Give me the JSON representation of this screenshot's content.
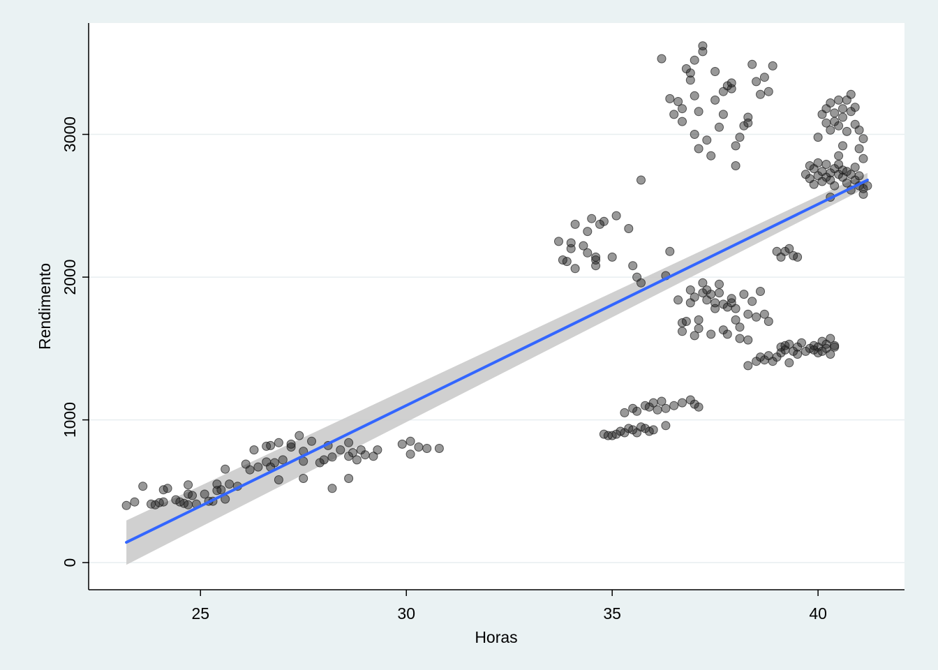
{
  "chart_data": {
    "type": "scatter",
    "title": "",
    "xlabel": "Horas",
    "ylabel": "Rendimento",
    "xlim": [
      22.3,
      42.1
    ],
    "ylim": [
      -190,
      3780
    ],
    "x_ticks": [
      25,
      30,
      35,
      40
    ],
    "y_ticks": [
      0,
      1000,
      2000,
      3000
    ],
    "grid": "horizontal",
    "legend": "none",
    "colors": {
      "page_background": "#eaf2f3",
      "plot_background": "#ffffff",
      "gridline": "#e8eef0",
      "points": "#1a1a1a",
      "fit_line": "#3366ff",
      "confidence_band": "#c8c8c8",
      "axis": "#000000"
    },
    "fit": {
      "method": "linear",
      "start": [
        23.2,
        142
      ],
      "end": [
        41.2,
        2680
      ],
      "ci_start": [
        -15,
        295
      ],
      "ci_end": [
        2630,
        2730
      ]
    },
    "points": [
      [
        23.2,
        400
      ],
      [
        23.4,
        425
      ],
      [
        23.6,
        535
      ],
      [
        23.8,
        410
      ],
      [
        23.9,
        405
      ],
      [
        24.0,
        420
      ],
      [
        24.1,
        510
      ],
      [
        24.1,
        425
      ],
      [
        24.2,
        520
      ],
      [
        24.4,
        440
      ],
      [
        24.5,
        425
      ],
      [
        24.6,
        415
      ],
      [
        24.7,
        480
      ],
      [
        24.7,
        405
      ],
      [
        24.7,
        545
      ],
      [
        24.8,
        470
      ],
      [
        24.9,
        410
      ],
      [
        25.1,
        480
      ],
      [
        25.2,
        430
      ],
      [
        25.3,
        430
      ],
      [
        25.4,
        505
      ],
      [
        25.4,
        550
      ],
      [
        25.5,
        510
      ],
      [
        25.6,
        445
      ],
      [
        25.6,
        655
      ],
      [
        25.7,
        550
      ],
      [
        25.9,
        535
      ],
      [
        26.1,
        690
      ],
      [
        26.2,
        650
      ],
      [
        26.3,
        790
      ],
      [
        26.4,
        670
      ],
      [
        26.6,
        815
      ],
      [
        26.6,
        705
      ],
      [
        26.7,
        820
      ],
      [
        26.7,
        670
      ],
      [
        26.8,
        700
      ],
      [
        26.9,
        580
      ],
      [
        26.9,
        840
      ],
      [
        27.0,
        720
      ],
      [
        27.2,
        810
      ],
      [
        27.2,
        830
      ],
      [
        27.4,
        890
      ],
      [
        27.5,
        710
      ],
      [
        27.5,
        590
      ],
      [
        27.5,
        780
      ],
      [
        27.7,
        850
      ],
      [
        27.9,
        700
      ],
      [
        28.0,
        720
      ],
      [
        28.1,
        820
      ],
      [
        28.2,
        520
      ],
      [
        28.2,
        740
      ],
      [
        28.4,
        790
      ],
      [
        28.6,
        590
      ],
      [
        28.6,
        745
      ],
      [
        28.6,
        840
      ],
      [
        28.7,
        770
      ],
      [
        28.8,
        720
      ],
      [
        28.9,
        790
      ],
      [
        29.0,
        755
      ],
      [
        29.2,
        745
      ],
      [
        29.3,
        790
      ],
      [
        29.9,
        830
      ],
      [
        30.1,
        760
      ],
      [
        30.1,
        850
      ],
      [
        30.3,
        810
      ],
      [
        30.5,
        800
      ],
      [
        30.8,
        800
      ],
      [
        33.7,
        2250
      ],
      [
        33.8,
        2120
      ],
      [
        33.9,
        2110
      ],
      [
        34.0,
        2200
      ],
      [
        34.0,
        2240
      ],
      [
        34.1,
        2370
      ],
      [
        34.1,
        2060
      ],
      [
        34.3,
        2220
      ],
      [
        34.4,
        2170
      ],
      [
        34.4,
        2320
      ],
      [
        34.5,
        2410
      ],
      [
        34.6,
        2120
      ],
      [
        34.6,
        2140
      ],
      [
        34.6,
        2080
      ],
      [
        34.7,
        2370
      ],
      [
        34.8,
        2390
      ],
      [
        35.0,
        2140
      ],
      [
        35.1,
        2430
      ],
      [
        35.4,
        2340
      ],
      [
        35.5,
        2080
      ],
      [
        35.6,
        2000
      ],
      [
        35.7,
        1960
      ],
      [
        35.7,
        2680
      ],
      [
        36.2,
        3530
      ],
      [
        36.3,
        2010
      ],
      [
        36.4,
        2180
      ],
      [
        36.4,
        3250
      ],
      [
        36.5,
        3140
      ],
      [
        36.6,
        3230
      ],
      [
        36.7,
        3180
      ],
      [
        36.7,
        3090
      ],
      [
        36.8,
        3460
      ],
      [
        36.9,
        3430
      ],
      [
        36.9,
        3380
      ],
      [
        37.0,
        3270
      ],
      [
        37.0,
        3000
      ],
      [
        37.0,
        3520
      ],
      [
        37.1,
        3160
      ],
      [
        37.1,
        2900
      ],
      [
        37.2,
        3620
      ],
      [
        37.2,
        3580
      ],
      [
        37.3,
        2960
      ],
      [
        37.4,
        2850
      ],
      [
        37.5,
        3440
      ],
      [
        37.5,
        3240
      ],
      [
        37.6,
        3050
      ],
      [
        37.7,
        3140
      ],
      [
        37.7,
        3300
      ],
      [
        37.8,
        3340
      ],
      [
        37.9,
        3320
      ],
      [
        37.9,
        3360
      ],
      [
        38.0,
        2920
      ],
      [
        38.0,
        2780
      ],
      [
        38.1,
        2980
      ],
      [
        38.2,
        3060
      ],
      [
        38.3,
        3080
      ],
      [
        38.3,
        3120
      ],
      [
        38.4,
        3490
      ],
      [
        38.5,
        3370
      ],
      [
        38.6,
        3280
      ],
      [
        38.7,
        3400
      ],
      [
        38.8,
        3300
      ],
      [
        38.9,
        3480
      ],
      [
        36.6,
        1840
      ],
      [
        36.7,
        1680
      ],
      [
        36.7,
        1620
      ],
      [
        36.8,
        1690
      ],
      [
        36.9,
        1820
      ],
      [
        36.9,
        1910
      ],
      [
        37.0,
        1860
      ],
      [
        37.0,
        1590
      ],
      [
        37.1,
        1640
      ],
      [
        37.1,
        1700
      ],
      [
        37.2,
        1890
      ],
      [
        37.2,
        1960
      ],
      [
        37.3,
        1840
      ],
      [
        37.3,
        1910
      ],
      [
        37.4,
        1600
      ],
      [
        37.4,
        1880
      ],
      [
        37.5,
        1820
      ],
      [
        37.5,
        1780
      ],
      [
        37.6,
        1890
      ],
      [
        37.6,
        1950
      ],
      [
        37.7,
        1630
      ],
      [
        37.7,
        1810
      ],
      [
        37.8,
        1790
      ],
      [
        37.8,
        1600
      ],
      [
        37.9,
        1820
      ],
      [
        37.9,
        1850
      ],
      [
        38.0,
        1780
      ],
      [
        38.0,
        1700
      ],
      [
        38.1,
        1650
      ],
      [
        38.1,
        1570
      ],
      [
        38.2,
        1880
      ],
      [
        38.3,
        1740
      ],
      [
        38.3,
        1560
      ],
      [
        38.4,
        1830
      ],
      [
        38.5,
        1720
      ],
      [
        38.6,
        1900
      ],
      [
        38.7,
        1740
      ],
      [
        38.8,
        1690
      ],
      [
        39.0,
        2180
      ],
      [
        39.1,
        2140
      ],
      [
        39.2,
        2180
      ],
      [
        39.3,
        2200
      ],
      [
        39.4,
        2150
      ],
      [
        39.5,
        2140
      ],
      [
        38.3,
        1380
      ],
      [
        38.5,
        1410
      ],
      [
        38.6,
        1440
      ],
      [
        38.7,
        1420
      ],
      [
        38.8,
        1450
      ],
      [
        38.9,
        1410
      ],
      [
        39.0,
        1440
      ],
      [
        39.1,
        1470
      ],
      [
        39.1,
        1510
      ],
      [
        39.2,
        1520
      ],
      [
        39.2,
        1490
      ],
      [
        39.3,
        1400
      ],
      [
        39.3,
        1530
      ],
      [
        39.4,
        1480
      ],
      [
        39.5,
        1460
      ],
      [
        39.5,
        1510
      ],
      [
        39.6,
        1540
      ],
      [
        39.7,
        1480
      ],
      [
        39.8,
        1500
      ],
      [
        39.9,
        1520
      ],
      [
        39.9,
        1490
      ],
      [
        40.0,
        1470
      ],
      [
        40.0,
        1510
      ],
      [
        40.1,
        1550
      ],
      [
        40.1,
        1480
      ],
      [
        40.2,
        1500
      ],
      [
        40.2,
        1530
      ],
      [
        40.3,
        1460
      ],
      [
        40.3,
        1570
      ],
      [
        40.4,
        1510
      ],
      [
        40.4,
        1520
      ],
      [
        34.8,
        900
      ],
      [
        34.9,
        890
      ],
      [
        35.0,
        890
      ],
      [
        35.1,
        900
      ],
      [
        35.2,
        920
      ],
      [
        35.3,
        910
      ],
      [
        35.4,
        940
      ],
      [
        35.5,
        930
      ],
      [
        35.6,
        910
      ],
      [
        35.7,
        950
      ],
      [
        35.8,
        940
      ],
      [
        35.9,
        920
      ],
      [
        36.0,
        930
      ],
      [
        35.3,
        1050
      ],
      [
        35.5,
        1080
      ],
      [
        35.6,
        1060
      ],
      [
        35.8,
        1100
      ],
      [
        35.9,
        1090
      ],
      [
        36.0,
        1120
      ],
      [
        36.1,
        1070
      ],
      [
        36.2,
        1130
      ],
      [
        36.3,
        1080
      ],
      [
        36.5,
        1100
      ],
      [
        36.7,
        1120
      ],
      [
        36.9,
        1140
      ],
      [
        37.0,
        1110
      ],
      [
        37.1,
        1090
      ],
      [
        36.3,
        960
      ],
      [
        39.7,
        2720
      ],
      [
        39.8,
        2690
      ],
      [
        39.8,
        2780
      ],
      [
        39.9,
        2760
      ],
      [
        39.9,
        2650
      ],
      [
        40.0,
        2800
      ],
      [
        40.0,
        2710
      ],
      [
        40.1,
        2740
      ],
      [
        40.1,
        2670
      ],
      [
        40.2,
        2790
      ],
      [
        40.2,
        2700
      ],
      [
        40.3,
        2730
      ],
      [
        40.3,
        2680
      ],
      [
        40.4,
        2760
      ],
      [
        40.4,
        2640
      ],
      [
        40.5,
        2720
      ],
      [
        40.5,
        2790
      ],
      [
        40.6,
        2700
      ],
      [
        40.6,
        2750
      ],
      [
        40.7,
        2660
      ],
      [
        40.7,
        2740
      ],
      [
        40.8,
        2720
      ],
      [
        40.8,
        2610
      ],
      [
        40.9,
        2680
      ],
      [
        40.9,
        2770
      ],
      [
        41.0,
        2640
      ],
      [
        41.0,
        2710
      ],
      [
        41.1,
        2620
      ],
      [
        41.1,
        2580
      ],
      [
        41.2,
        2640
      ],
      [
        40.0,
        2980
      ],
      [
        40.1,
        3140
      ],
      [
        40.2,
        3080
      ],
      [
        40.2,
        3180
      ],
      [
        40.3,
        3030
      ],
      [
        40.3,
        3220
      ],
      [
        40.4,
        3150
      ],
      [
        40.4,
        3090
      ],
      [
        40.5,
        3240
      ],
      [
        40.5,
        3060
      ],
      [
        40.6,
        3180
      ],
      [
        40.6,
        3120
      ],
      [
        40.7,
        3240
      ],
      [
        40.7,
        3020
      ],
      [
        40.8,
        3160
      ],
      [
        40.8,
        3280
      ],
      [
        40.9,
        3070
      ],
      [
        40.9,
        3190
      ],
      [
        41.0,
        3030
      ],
      [
        41.0,
        2900
      ],
      [
        41.1,
        2830
      ],
      [
        41.1,
        2970
      ],
      [
        40.5,
        2850
      ],
      [
        40.6,
        2920
      ],
      [
        40.3,
        2560
      ]
    ]
  }
}
